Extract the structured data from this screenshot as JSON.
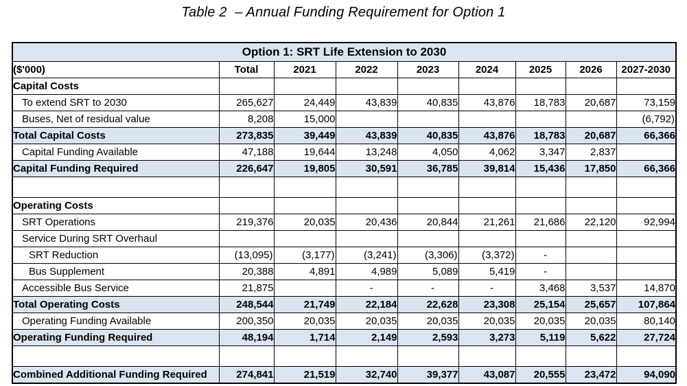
{
  "page_title": "Table 2  – Annual Funding Requirement for Option 1",
  "table": {
    "header": "Option 1: SRT Life Extension to 2030",
    "unit_label": "($'000)",
    "columns": [
      "Total",
      "2021",
      "2022",
      "2023",
      "2024",
      "2025",
      "2026",
      "2027-2030"
    ],
    "shade_color": "#dbe5f1",
    "border_color": "#000000",
    "rows": [
      {
        "label": "Capital Costs",
        "indent": 0,
        "bold": true,
        "shaded": false,
        "blank": false,
        "values": [
          "",
          "",
          "",
          "",
          "",
          "",
          "",
          ""
        ]
      },
      {
        "label": "To extend SRT to 2030",
        "indent": 1,
        "bold": false,
        "shaded": false,
        "blank": false,
        "values": [
          "265,627",
          "24,449",
          "43,839",
          "40,835",
          "43,876",
          "18,783",
          "20,687",
          "73,159"
        ]
      },
      {
        "label": "Buses, Net of residual value",
        "indent": 1,
        "bold": false,
        "shaded": false,
        "blank": false,
        "values": [
          "8,208",
          "15,000",
          "",
          "",
          "",
          "",
          "",
          "(6,792)"
        ]
      },
      {
        "label": "Total Capital Costs",
        "indent": 0,
        "bold": true,
        "shaded": true,
        "blank": false,
        "values": [
          "273,835",
          "39,449",
          "43,839",
          "40,835",
          "43,876",
          "18,783",
          "20,687",
          "66,366"
        ]
      },
      {
        "label": "Capital Funding Available",
        "indent": 1,
        "bold": false,
        "shaded": false,
        "blank": false,
        "values": [
          "47,188",
          "19,644",
          "13,248",
          "4,050",
          "4,062",
          "3,347",
          "2,837",
          ""
        ]
      },
      {
        "label": "Capital Funding Required",
        "indent": 0,
        "bold": true,
        "shaded": true,
        "blank": false,
        "values": [
          "226,647",
          "19,805",
          "30,591",
          "36,785",
          "39,814",
          "15,436",
          "17,850",
          "66,366"
        ]
      },
      {
        "label": "",
        "indent": 0,
        "bold": false,
        "shaded": false,
        "blank": true,
        "values": [
          "",
          "",
          "",
          "",
          "",
          "",
          "",
          ""
        ]
      },
      {
        "label": "Operating Costs",
        "indent": 0,
        "bold": true,
        "shaded": false,
        "blank": false,
        "values": [
          "",
          "",
          "",
          "",
          "",
          "",
          "",
          ""
        ]
      },
      {
        "label": "SRT Operations",
        "indent": 1,
        "bold": false,
        "shaded": false,
        "blank": false,
        "values": [
          "219,376",
          "20,035",
          "20,436",
          "20,844",
          "21,261",
          "21,686",
          "22,120",
          "92,994"
        ]
      },
      {
        "label": "Service During SRT Overhaul",
        "indent": 1,
        "bold": false,
        "shaded": false,
        "blank": false,
        "values": [
          "",
          "",
          "",
          "",
          "",
          "",
          "",
          ""
        ]
      },
      {
        "label": "SRT Reduction",
        "indent": 2,
        "bold": false,
        "shaded": false,
        "blank": false,
        "values": [
          "(13,095)",
          "(3,177)",
          "(3,241)",
          "(3,306)",
          "(3,372)",
          "-",
          "",
          ""
        ]
      },
      {
        "label": "Bus Supplement",
        "indent": 2,
        "bold": false,
        "shaded": false,
        "blank": false,
        "values": [
          "20,388",
          "4,891",
          "4,989",
          "5,089",
          "5,419",
          "-",
          "",
          ""
        ]
      },
      {
        "label": "Accessible Bus Service",
        "indent": 1,
        "bold": false,
        "shaded": false,
        "blank": false,
        "values": [
          "21,875",
          "",
          "-",
          "-",
          "-",
          "3,468",
          "3,537",
          "14,870"
        ]
      },
      {
        "label": "Total Operating Costs",
        "indent": 0,
        "bold": true,
        "shaded": true,
        "blank": false,
        "values": [
          "248,544",
          "21,749",
          "22,184",
          "22,628",
          "23,308",
          "25,154",
          "25,657",
          "107,864"
        ]
      },
      {
        "label": "Operating Funding Available",
        "indent": 1,
        "bold": false,
        "shaded": false,
        "blank": false,
        "values": [
          "200,350",
          "20,035",
          "20,035",
          "20,035",
          "20,035",
          "20,035",
          "20,035",
          "80,140"
        ]
      },
      {
        "label": "Operating Funding Required",
        "indent": 0,
        "bold": true,
        "shaded": true,
        "blank": false,
        "values": [
          "48,194",
          "1,714",
          "2,149",
          "2,593",
          "3,273",
          "5,119",
          "5,622",
          "27,724"
        ]
      },
      {
        "label": "",
        "indent": 0,
        "bold": false,
        "shaded": false,
        "blank": true,
        "values": [
          "",
          "",
          "",
          "",
          "",
          "",
          "",
          ""
        ]
      },
      {
        "label": "Combined Additional Funding Required",
        "indent": 0,
        "bold": true,
        "shaded": true,
        "blank": false,
        "values": [
          "274,841",
          "21,519",
          "32,740",
          "39,377",
          "43,087",
          "20,555",
          "23,472",
          "94,090"
        ]
      }
    ]
  }
}
